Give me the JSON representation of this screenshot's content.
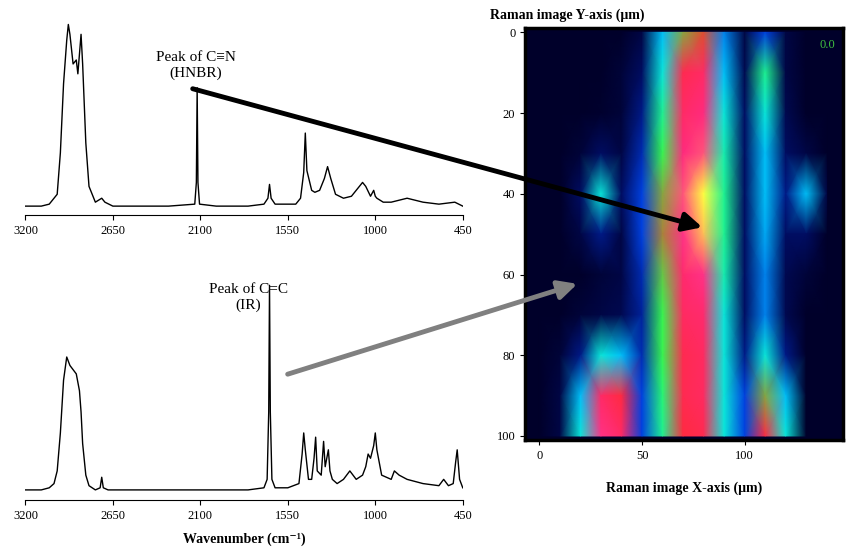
{
  "chart_data": [
    {
      "type": "line",
      "x": [
        3200,
        3100,
        3050,
        3000,
        2980,
        2960,
        2940,
        2930,
        2920,
        2900,
        2880,
        2870,
        2860,
        2850,
        2840,
        2820,
        2800,
        2760,
        2720,
        2700,
        2650,
        2500,
        2300,
        2135,
        2125,
        2120,
        2115,
        2105,
        2000,
        1800,
        1700,
        1675,
        1665,
        1655,
        1630,
        1500,
        1470,
        1450,
        1440,
        1430,
        1400,
        1380,
        1350,
        1320,
        1300,
        1280,
        1250,
        1200,
        1150,
        1100,
        1080,
        1060,
        1030,
        1010,
        1000,
        990,
        950,
        900,
        800,
        700,
        600,
        500,
        450
      ],
      "values": [
        8,
        8,
        9,
        14,
        35,
        70,
        92,
        100,
        95,
        80,
        82,
        75,
        85,
        95,
        80,
        40,
        18,
        10,
        12,
        10,
        8,
        8,
        8,
        9,
        20,
        68,
        20,
        9,
        8,
        8,
        9,
        12,
        19,
        12,
        9,
        9,
        12,
        25,
        45,
        26,
        16,
        15,
        16,
        22,
        28,
        22,
        14,
        12,
        13,
        18,
        20,
        18,
        13,
        16,
        13,
        12,
        10,
        10,
        12,
        10,
        9,
        10,
        8
      ],
      "color": "#000000",
      "xlim": [
        3200,
        450
      ],
      "xticks": [
        3200,
        2650,
        2100,
        1550,
        1000,
        450
      ],
      "tick_labels": "x",
      "grid": false,
      "annotations": [
        {
          "text": "Peak of C≡N\n(HNBR)"
        }
      ]
    },
    {
      "type": "line",
      "x": [
        3200,
        3100,
        3050,
        3020,
        3000,
        2980,
        2960,
        2940,
        2920,
        2900,
        2880,
        2860,
        2850,
        2840,
        2820,
        2800,
        2760,
        2730,
        2720,
        2710,
        2680,
        2600,
        2400,
        2200,
        2000,
        1800,
        1700,
        1680,
        1670,
        1665,
        1660,
        1650,
        1630,
        1550,
        1480,
        1460,
        1450,
        1440,
        1420,
        1400,
        1385,
        1375,
        1365,
        1340,
        1325,
        1315,
        1295,
        1285,
        1270,
        1240,
        1200,
        1160,
        1120,
        1080,
        1060,
        1045,
        1030,
        1010,
        1000,
        990,
        960,
        900,
        880,
        850,
        800,
        700,
        600,
        570,
        540,
        510,
        495,
        485,
        470,
        450
      ],
      "values": [
        3,
        3,
        4,
        6,
        12,
        30,
        55,
        66,
        62,
        60,
        58,
        50,
        40,
        25,
        10,
        5,
        3,
        4,
        9,
        4,
        3,
        3,
        3,
        3,
        3,
        3,
        4,
        8,
        40,
        100,
        40,
        8,
        4,
        4,
        6,
        20,
        30,
        22,
        8,
        8,
        18,
        28,
        12,
        10,
        26,
        14,
        22,
        12,
        8,
        6,
        8,
        12,
        8,
        10,
        14,
        20,
        18,
        24,
        30,
        22,
        10,
        8,
        12,
        10,
        8,
        6,
        5,
        8,
        5,
        6,
        16,
        22,
        8,
        4
      ],
      "color": "#000000",
      "xlim": [
        3200,
        450
      ],
      "xticks": [
        3200,
        2650,
        2100,
        1550,
        1000,
        450
      ],
      "x_label": "Wavenumber (cm⁻¹)",
      "tick_labels": "x",
      "grid": false,
      "annotations": [
        {
          "text": "Peak of C=C\n(IR)"
        }
      ]
    },
    {
      "type": "heatmap",
      "y_label": "Raman image Y-axis (μm)",
      "x_label": "Raman image X-axis (μm)",
      "x": [
        0,
        10,
        20,
        30,
        40,
        50,
        60,
        70,
        80,
        90,
        100,
        110,
        120,
        130,
        140
      ],
      "y": [
        0,
        10,
        20,
        30,
        40,
        50,
        60,
        70,
        80,
        90,
        100
      ],
      "values": [
        [
          0.05,
          0.05,
          0.05,
          0.05,
          0.05,
          0.1,
          0.4,
          0.6,
          0.65,
          0.35,
          0.1,
          0.3,
          0.1,
          0.05,
          0.05
        ],
        [
          0.05,
          0.05,
          0.05,
          0.05,
          0.08,
          0.15,
          0.45,
          0.72,
          0.75,
          0.4,
          0.12,
          0.5,
          0.1,
          0.05,
          0.05
        ],
        [
          0.05,
          0.05,
          0.05,
          0.06,
          0.08,
          0.2,
          0.5,
          0.75,
          0.78,
          0.45,
          0.15,
          0.45,
          0.12,
          0.05,
          0.05
        ],
        [
          0.05,
          0.05,
          0.08,
          0.15,
          0.1,
          0.25,
          0.55,
          0.78,
          0.82,
          0.48,
          0.15,
          0.4,
          0.15,
          0.1,
          0.05
        ],
        [
          0.05,
          0.05,
          0.15,
          0.45,
          0.15,
          0.3,
          0.6,
          0.82,
          0.92,
          0.5,
          0.15,
          0.4,
          0.2,
          0.4,
          0.1
        ],
        [
          0.05,
          0.05,
          0.1,
          0.2,
          0.1,
          0.3,
          0.62,
          0.8,
          0.88,
          0.5,
          0.15,
          0.38,
          0.15,
          0.15,
          0.05
        ],
        [
          0.05,
          0.05,
          0.05,
          0.08,
          0.1,
          0.25,
          0.58,
          0.76,
          0.8,
          0.48,
          0.15,
          0.35,
          0.12,
          0.08,
          0.05
        ],
        [
          0.05,
          0.05,
          0.08,
          0.1,
          0.12,
          0.22,
          0.55,
          0.74,
          0.76,
          0.45,
          0.15,
          0.35,
          0.12,
          0.05,
          0.05
        ],
        [
          0.05,
          0.08,
          0.2,
          0.45,
          0.4,
          0.25,
          0.55,
          0.72,
          0.74,
          0.45,
          0.2,
          0.45,
          0.2,
          0.05,
          0.05
        ],
        [
          0.05,
          0.1,
          0.4,
          0.75,
          0.7,
          0.3,
          0.52,
          0.72,
          0.74,
          0.45,
          0.3,
          0.6,
          0.4,
          0.05,
          0.05
        ],
        [
          0.05,
          0.1,
          0.45,
          0.8,
          0.75,
          0.3,
          0.5,
          0.7,
          0.72,
          0.45,
          0.3,
          0.7,
          0.45,
          0.05,
          0.05
        ]
      ],
      "colors": [
        "#00002a",
        "#001070",
        "#0040e0",
        "#00e0ff",
        "#30ff50",
        "#ff2a2a",
        "#ff2a8a",
        "#ffff40"
      ],
      "xlim": [
        -7,
        148
      ],
      "ylim": [
        101,
        -1
      ],
      "xticks": [
        0,
        50,
        100
      ],
      "yticks": [
        0,
        20,
        40,
        60,
        80,
        100
      ],
      "grid": false,
      "annotations": [
        {
          "text": "0.0",
          "color": "#40c040"
        }
      ]
    }
  ]
}
